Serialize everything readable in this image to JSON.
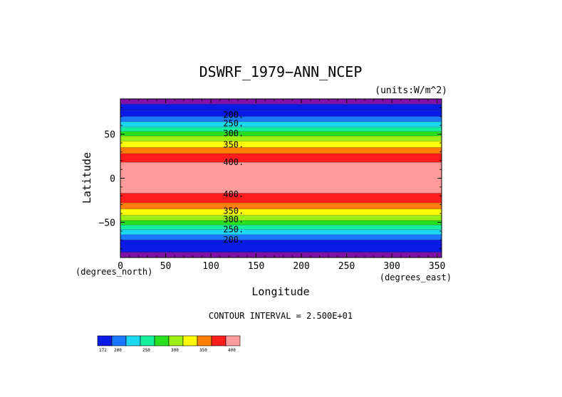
{
  "chart_data": {
    "type": "heatmap",
    "title": "DSWRF_1979−ANN_NCEP",
    "units": "(units:W/m^2)",
    "xlabel": "Longitude",
    "ylabel": "Latitude",
    "x_unit_label": "(degrees_east)",
    "y_unit_label": "(degrees_north)",
    "xlim": [
      0,
      355
    ],
    "ylim": [
      -90,
      90
    ],
    "xticks": [
      0,
      50,
      100,
      150,
      200,
      250,
      300,
      350
    ],
    "yticks": [
      50,
      0,
      -50
    ],
    "ytick_labels": [
      "50",
      "0",
      "−50"
    ],
    "contour_interval_text": "CONTOUR INTERVAL = 2.500E+01",
    "bands": [
      {
        "lat": [
          84,
          90
        ],
        "color": "#7f10a8"
      },
      {
        "lat": [
          77,
          84
        ],
        "color": "#0a1ae6"
      },
      {
        "lat": [
          70,
          77
        ],
        "color": "#0a1ae6"
      },
      {
        "lat": [
          64,
          70
        ],
        "color": "#1a78ff"
      },
      {
        "lat": [
          58,
          64
        ],
        "color": "#1ad8f0"
      },
      {
        "lat": [
          53,
          58
        ],
        "color": "#14f0a0"
      },
      {
        "lat": [
          48,
          53
        ],
        "color": "#28e01e"
      },
      {
        "lat": [
          42,
          48
        ],
        "color": "#9aef14"
      },
      {
        "lat": [
          35,
          42
        ],
        "color": "#ffff00"
      },
      {
        "lat": [
          28,
          35
        ],
        "color": "#ff8000"
      },
      {
        "lat": [
          18,
          28
        ],
        "color": "#ff1c1c"
      },
      {
        "lat": [
          -17,
          18
        ],
        "color": "#ff9a9a"
      },
      {
        "lat": [
          -28,
          -17
        ],
        "color": "#ff1c1c"
      },
      {
        "lat": [
          -35,
          -28
        ],
        "color": "#ff8000"
      },
      {
        "lat": [
          -42,
          -35
        ],
        "color": "#ffff00"
      },
      {
        "lat": [
          -48,
          -42
        ],
        "color": "#9aef14"
      },
      {
        "lat": [
          -53,
          -48
        ],
        "color": "#28e01e"
      },
      {
        "lat": [
          -58,
          -53
        ],
        "color": "#14f0a0"
      },
      {
        "lat": [
          -64,
          -58
        ],
        "color": "#1ad8f0"
      },
      {
        "lat": [
          -70,
          -64
        ],
        "color": "#1a78ff"
      },
      {
        "lat": [
          -84,
          -70
        ],
        "color": "#0a1ae6"
      },
      {
        "lat": [
          -90,
          -84
        ],
        "color": "#7f10a8"
      }
    ],
    "contour_labels": [
      {
        "text": "200.",
        "lat": 72
      },
      {
        "text": "250.",
        "lat": 62
      },
      {
        "text": "300.",
        "lat": 51
      },
      {
        "text": "350.",
        "lat": 38
      },
      {
        "text": "400.",
        "lat": 18
      },
      {
        "text": "400.",
        "lat": -18
      },
      {
        "text": "350.",
        "lat": -37
      },
      {
        "text": "300.",
        "lat": -47
      },
      {
        "text": "250.",
        "lat": -58
      },
      {
        "text": "200.",
        "lat": -70
      }
    ],
    "colorbar": {
      "colors": [
        "#0a1ae6",
        "#1a78ff",
        "#1ad8f0",
        "#14f0a0",
        "#28e01e",
        "#9aef14",
        "#ffff00",
        "#ff8000",
        "#ff1c1c",
        "#ff9a9a"
      ],
      "labels": [
        "172",
        "200",
        "250",
        "300",
        "350",
        "400"
      ],
      "label_box_index": [
        0,
        1,
        3,
        5,
        7,
        9
      ]
    }
  }
}
